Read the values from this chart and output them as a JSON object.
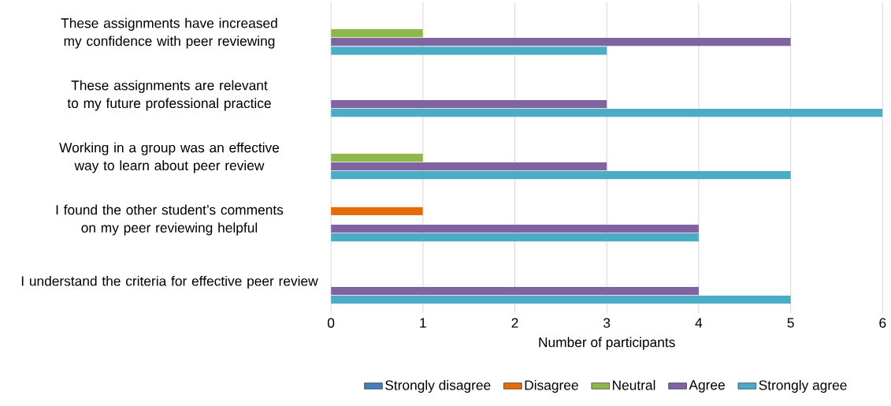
{
  "chart_data": {
    "type": "bar",
    "orientation": "horizontal",
    "categories": [
      "These assignments have increased my confidence with peer reviewing",
      "These assignments are relevant to my future professional practice",
      "Working in a group was an effective way to learn about peer review",
      "I found the other student’s comments on my peer reviewing helpful",
      "I understand the criteria for effective peer review"
    ],
    "series": [
      {
        "name": "Strongly disagree",
        "color": "#4a7ebb",
        "values": [
          0,
          0,
          0,
          0,
          0
        ]
      },
      {
        "name": "Disagree",
        "color": "#e36c09",
        "values": [
          0,
          0,
          0,
          1,
          0
        ]
      },
      {
        "name": "Neutral",
        "color": "#8fb84c",
        "values": [
          1,
          0,
          1,
          0,
          0
        ]
      },
      {
        "name": "Agree",
        "color": "#8064a2",
        "values": [
          5,
          3,
          3,
          4,
          4
        ]
      },
      {
        "name": "Strongly agree",
        "color": "#4bacc6",
        "values": [
          3,
          6,
          5,
          4,
          5
        ]
      }
    ],
    "xlabel": "Number of participants",
    "xlim": [
      0,
      6
    ],
    "xticks": [
      0,
      1,
      2,
      3,
      4,
      5,
      6
    ],
    "grid": "x",
    "legend": "bottom"
  }
}
